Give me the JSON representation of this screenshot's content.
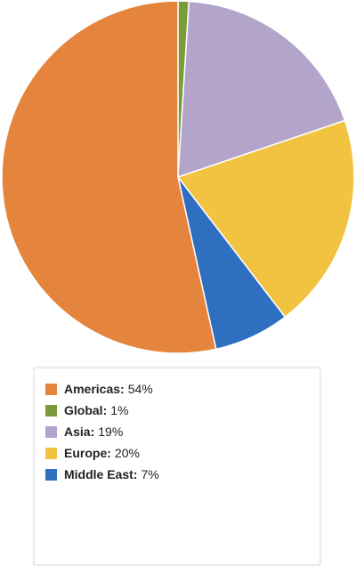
{
  "chart_data": {
    "type": "pie",
    "slices": [
      {
        "name": "Global",
        "value": 1,
        "label": "1%",
        "color": "#7b9a3a"
      },
      {
        "name": "Asia",
        "value": 19,
        "label": "19%",
        "color": "#b3a4c9"
      },
      {
        "name": "Europe",
        "value": 20,
        "label": "20%",
        "color": "#f2c341"
      },
      {
        "name": "Middle East",
        "value": 7,
        "label": "7%",
        "color": "#2f6fbf"
      },
      {
        "name": "Americas",
        "value": 54,
        "label": "54%",
        "color": "#e5853d"
      }
    ],
    "legend": {
      "placement": "bottom",
      "items": [
        {
          "name": "Americas",
          "label": "54%",
          "color": "#e5853d"
        },
        {
          "name": "Global",
          "label": "1%",
          "color": "#7b9a3a"
        },
        {
          "name": "Asia",
          "label": "19%",
          "color": "#b3a4c9"
        },
        {
          "name": "Europe",
          "label": "20%",
          "color": "#f2c341"
        },
        {
          "name": "Middle East",
          "label": "7%",
          "color": "#2f6fbf"
        }
      ]
    }
  }
}
